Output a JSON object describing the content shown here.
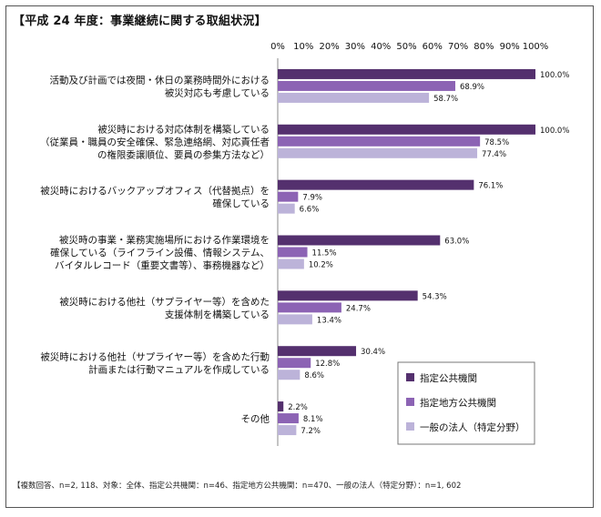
{
  "chart_data": {
    "type": "bar",
    "orientation": "horizontal",
    "title": "【平成 24 年度：事業継続に関する取組状況】",
    "xlim": [
      0,
      100
    ],
    "x_ticks": [
      "0%",
      "10%",
      "20%",
      "30%",
      "40%",
      "50%",
      "60%",
      "70%",
      "80%",
      "90%",
      "100%"
    ],
    "categories": [
      [
        "活動及び計画では夜間・休日の業務時間外における",
        "被災対応も考慮している"
      ],
      [
        "被災時における対応体制を構築している",
        "（従業員・職員の安全確保、緊急連絡網、対応責任者",
        "の権限委譲順位、要員の参集方法など）"
      ],
      [
        "被災時におけるバックアップオフィス（代替拠点）を",
        "確保している"
      ],
      [
        "被災時の事業・業務実施場所における作業環境を",
        "確保している（ライフライン設備、情報システム、",
        "バイタルレコード（重要文書等）、事務機器など）"
      ],
      [
        "被災時における他社（サプライヤー等）を含めた",
        "支援体制を構築している"
      ],
      [
        "被災時における他社（サプライヤー等）を含めた行動",
        "計画または行動マニュアルを作成している"
      ],
      [
        "その他"
      ]
    ],
    "series": [
      {
        "name": "指定公共機関",
        "color": "#54306e",
        "values": [
          100.0,
          100.0,
          76.1,
          63.0,
          54.3,
          30.4,
          2.2
        ],
        "labels": [
          "100.0%",
          "100.0%",
          "76.1%",
          "63.0%",
          "54.3%",
          "30.4%",
          "2.2%"
        ]
      },
      {
        "name": "指定地方公共機関",
        "color": "#8c63b4",
        "values": [
          68.9,
          78.5,
          7.9,
          11.5,
          24.7,
          12.8,
          8.1
        ],
        "labels": [
          "68.9%",
          "78.5%",
          "7.9%",
          "11.5%",
          "24.7%",
          "12.8%",
          "8.1%"
        ]
      },
      {
        "name": "一般の法人（特定分野）",
        "color": "#bcb3d9",
        "values": [
          58.7,
          77.4,
          6.6,
          10.2,
          13.4,
          8.6,
          7.2
        ],
        "labels": [
          "58.7%",
          "77.4%",
          "6.6%",
          "10.2%",
          "13.4%",
          "8.6%",
          "7.2%"
        ]
      }
    ],
    "legend": "bottom-right",
    "note": "【複数回答、n=2, 118、対象：全体、指定公共機関：n=46、指定地方公共機関：n=470、一般の法人（特定分野）：n=1, 602"
  }
}
